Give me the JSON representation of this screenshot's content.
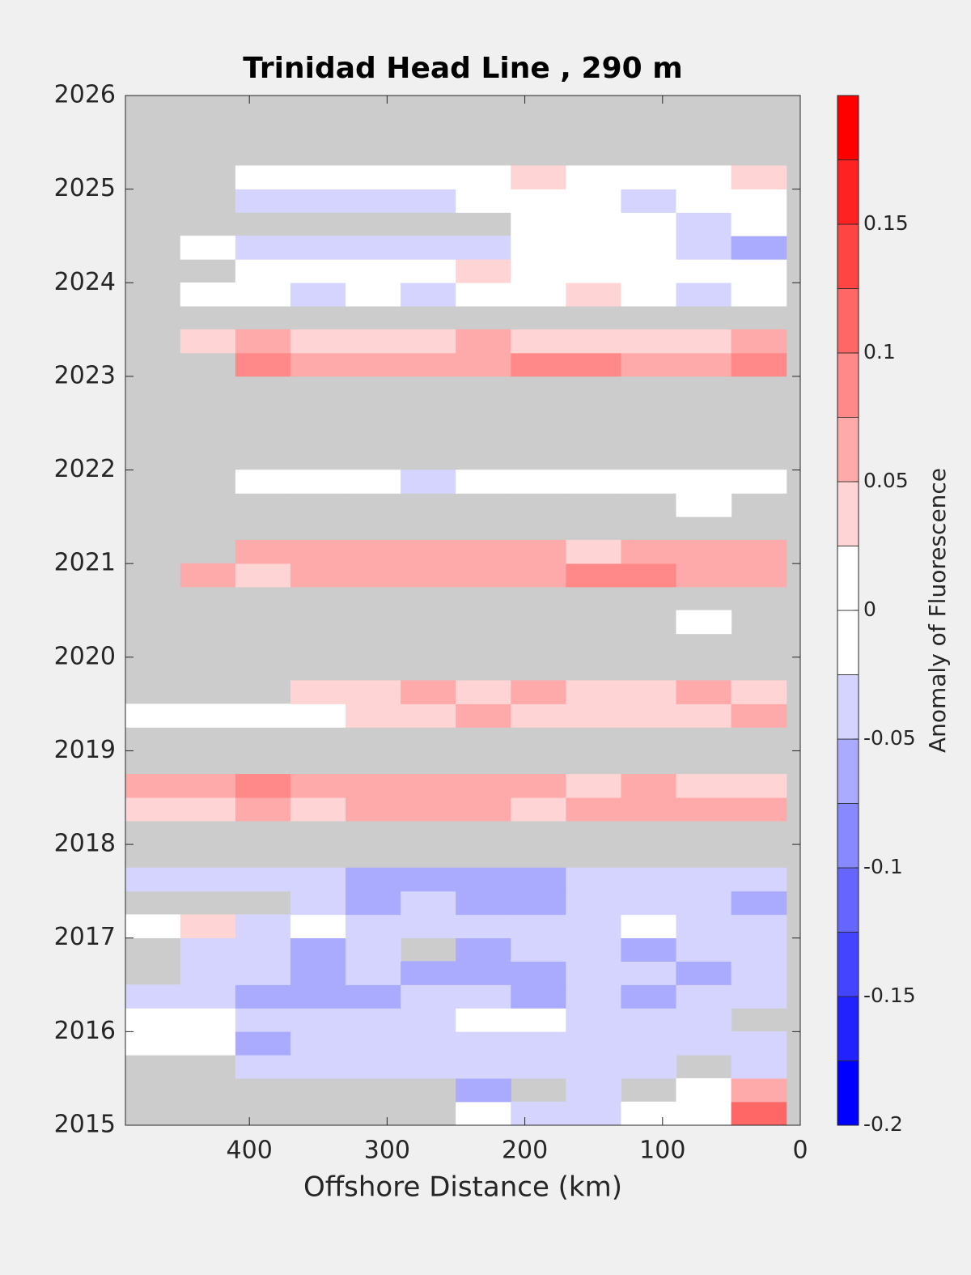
{
  "chart_data": {
    "type": "heatmap",
    "title": "Trinidad Head Line , 290 m",
    "xlabel": "Offshore Distance (km)",
    "colorbar_label": "Anomaly of Fluorescence",
    "xlim": [
      490,
      0
    ],
    "xticks": [
      400,
      300,
      200,
      100,
      0
    ],
    "ylim": [
      2015,
      2026
    ],
    "yticks": [
      2015,
      2016,
      2017,
      2018,
      2019,
      2020,
      2021,
      2022,
      2023,
      2024,
      2025,
      2026
    ],
    "clim": [
      -0.2,
      0.2
    ],
    "cticks": [
      -0.2,
      -0.15,
      -0.1,
      -0.05,
      0,
      0.05,
      0.1,
      0.15
    ],
    "colors": [
      "#0000ff",
      "#2222ff",
      "#4444ff",
      "#6666ff",
      "#8888ff",
      "#aaaaff",
      "#d4d4ff",
      "#ffffff",
      "#ffffff",
      "#ffd4d4",
      "#ffaaaa",
      "#ff8888",
      "#ff6666",
      "#ff4444",
      "#ff2222",
      "#ff0000"
    ],
    "missing_color": "#cccccc",
    "x": [
      470,
      430,
      390,
      350,
      310,
      270,
      230,
      190,
      150,
      110,
      70,
      30
    ],
    "y": [
      2015.125,
      2015.375,
      2015.625,
      2015.875,
      2016.125,
      2016.375,
      2016.625,
      2016.875,
      2017.125,
      2017.375,
      2017.625,
      2017.875,
      2018.125,
      2018.375,
      2018.625,
      2018.875,
      2019.125,
      2019.375,
      2019.625,
      2019.875,
      2020.125,
      2020.375,
      2020.625,
      2020.875,
      2021.125,
      2021.375,
      2021.625,
      2021.875,
      2022.125,
      2022.375,
      2022.625,
      2022.875,
      2023.125,
      2023.375,
      2023.625,
      2023.875,
      2024.125,
      2024.375,
      2024.625,
      2024.875,
      2025.125,
      2025.375,
      2025.625,
      2025.875
    ],
    "z": [
      [
        null,
        null,
        null,
        null,
        null,
        null,
        0,
        -0.03,
        -0.03,
        0,
        0,
        0.12
      ],
      [
        null,
        null,
        null,
        null,
        null,
        null,
        -0.06,
        null,
        -0.05,
        null,
        0,
        0.05
      ],
      [
        null,
        null,
        -0.04,
        -0.03,
        -0.04,
        -0.03,
        -0.03,
        -0.03,
        -0.03,
        -0.03,
        null,
        -0.03
      ],
      [
        0,
        0,
        -0.06,
        -0.05,
        -0.04,
        -0.03,
        -0.03,
        -0.03,
        -0.04,
        -0.05,
        -0.04,
        -0.03
      ],
      [
        0,
        0,
        -0.04,
        -0.05,
        -0.03,
        -0.03,
        0,
        0,
        -0.03,
        -0.03,
        -0.03,
        null
      ],
      [
        -0.05,
        -0.04,
        -0.07,
        -0.06,
        -0.06,
        -0.05,
        -0.05,
        -0.06,
        -0.05,
        -0.06,
        -0.05,
        -0.04
      ],
      [
        null,
        -0.04,
        -0.05,
        -0.06,
        -0.05,
        -0.06,
        -0.07,
        -0.06,
        -0.05,
        -0.04,
        -0.06,
        -0.05
      ],
      [
        null,
        -0.03,
        -0.04,
        -0.06,
        -0.04,
        null,
        -0.06,
        -0.05,
        -0.05,
        -0.06,
        -0.04,
        -0.05
      ],
      [
        0,
        0.03,
        -0.04,
        0,
        -0.03,
        -0.04,
        -0.03,
        -0.05,
        -0.03,
        0,
        -0.04,
        -0.05
      ],
      [
        null,
        null,
        null,
        -0.05,
        -0.06,
        -0.05,
        -0.06,
        -0.07,
        -0.05,
        -0.04,
        -0.05,
        -0.06
      ],
      [
        -0.04,
        -0.04,
        -0.03,
        -0.04,
        -0.06,
        -0.06,
        -0.07,
        -0.06,
        -0.04,
        -0.04,
        -0.05,
        -0.05
      ],
      [
        null,
        null,
        null,
        null,
        null,
        null,
        null,
        null,
        null,
        null,
        null,
        null
      ],
      [
        null,
        null,
        null,
        null,
        null,
        null,
        null,
        null,
        null,
        null,
        null,
        null
      ],
      [
        0.04,
        0.04,
        0.05,
        0.04,
        0.05,
        0.06,
        0.05,
        0.04,
        0.06,
        0.07,
        0.06,
        0.05
      ],
      [
        0.07,
        0.06,
        0.08,
        0.06,
        0.05,
        0.07,
        0.05,
        0.06,
        0.04,
        0.05,
        0.04,
        0.03
      ],
      [
        null,
        null,
        null,
        null,
        null,
        null,
        null,
        null,
        null,
        null,
        null,
        null
      ],
      [
        null,
        null,
        null,
        null,
        null,
        null,
        null,
        null,
        null,
        null,
        null,
        null
      ],
      [
        0,
        0,
        0,
        0,
        0.03,
        0.04,
        0.05,
        0.04,
        0.03,
        0.04,
        0.04,
        0.05
      ],
      [
        null,
        null,
        null,
        0.03,
        0.04,
        0.05,
        0.04,
        0.05,
        0.03,
        0.04,
        0.05,
        0.04
      ],
      [
        null,
        null,
        null,
        null,
        null,
        null,
        null,
        null,
        null,
        null,
        null,
        null
      ],
      [
        null,
        null,
        null,
        null,
        null,
        null,
        null,
        null,
        null,
        null,
        null,
        null
      ],
      [
        null,
        null,
        null,
        null,
        null,
        null,
        null,
        null,
        null,
        null,
        0,
        null
      ],
      [
        null,
        null,
        null,
        null,
        null,
        null,
        null,
        null,
        null,
        null,
        null,
        null
      ],
      [
        null,
        0.05,
        0.04,
        0.05,
        0.07,
        0.06,
        0.05,
        0.07,
        0.09,
        0.08,
        0.07,
        0.07
      ],
      [
        null,
        null,
        0.06,
        0.05,
        0.07,
        0.06,
        0.05,
        0.06,
        0.04,
        0.05,
        0.06,
        0.06
      ],
      [
        null,
        null,
        null,
        null,
        null,
        null,
        null,
        null,
        null,
        null,
        null,
        null
      ],
      [
        null,
        null,
        null,
        null,
        null,
        null,
        null,
        null,
        null,
        null,
        0,
        null
      ],
      [
        null,
        null,
        0,
        0,
        0,
        -0.03,
        0,
        0,
        0,
        0,
        0,
        0
      ],
      [
        null,
        null,
        null,
        null,
        null,
        null,
        null,
        null,
        null,
        null,
        null,
        null
      ],
      [
        null,
        null,
        null,
        null,
        null,
        null,
        null,
        null,
        null,
        null,
        null,
        null
      ],
      [
        null,
        null,
        null,
        null,
        null,
        null,
        null,
        null,
        null,
        null,
        null,
        null
      ],
      [
        null,
        null,
        null,
        null,
        null,
        null,
        null,
        null,
        null,
        null,
        null,
        null
      ],
      [
        null,
        null,
        0.09,
        0.07,
        0.05,
        0.06,
        0.07,
        0.08,
        0.09,
        0.07,
        0.07,
        0.08
      ],
      [
        null,
        0.03,
        0.05,
        0.04,
        0.04,
        0.04,
        0.05,
        0.03,
        0.04,
        0.04,
        0.04,
        0.05
      ],
      [
        null,
        null,
        null,
        null,
        null,
        null,
        null,
        null,
        null,
        null,
        null,
        null
      ],
      [
        null,
        0,
        0,
        -0.03,
        0,
        -0.04,
        0,
        0,
        0.03,
        0,
        -0.03,
        0
      ],
      [
        null,
        null,
        0,
        0,
        0,
        0,
        0.03,
        0,
        0,
        0,
        0,
        0
      ],
      [
        null,
        0,
        -0.04,
        -0.03,
        -0.04,
        -0.03,
        -0.03,
        0,
        0,
        0,
        -0.03,
        -0.06
      ],
      [
        null,
        null,
        null,
        null,
        null,
        null,
        null,
        0,
        0,
        0,
        -0.03,
        0
      ],
      [
        null,
        null,
        -0.04,
        -0.03,
        -0.03,
        -0.03,
        0,
        0,
        0,
        -0.03,
        0,
        0
      ],
      [
        null,
        null,
        0,
        0,
        0,
        0,
        0,
        0.03,
        0,
        0,
        0,
        0.03
      ],
      [
        null,
        null,
        null,
        null,
        null,
        null,
        null,
        null,
        null,
        null,
        null,
        null
      ],
      [
        null,
        null,
        null,
        null,
        null,
        null,
        null,
        null,
        null,
        null,
        null,
        null
      ],
      [
        null,
        null,
        null,
        null,
        null,
        null,
        null,
        null,
        null,
        null,
        null,
        null
      ]
    ]
  }
}
